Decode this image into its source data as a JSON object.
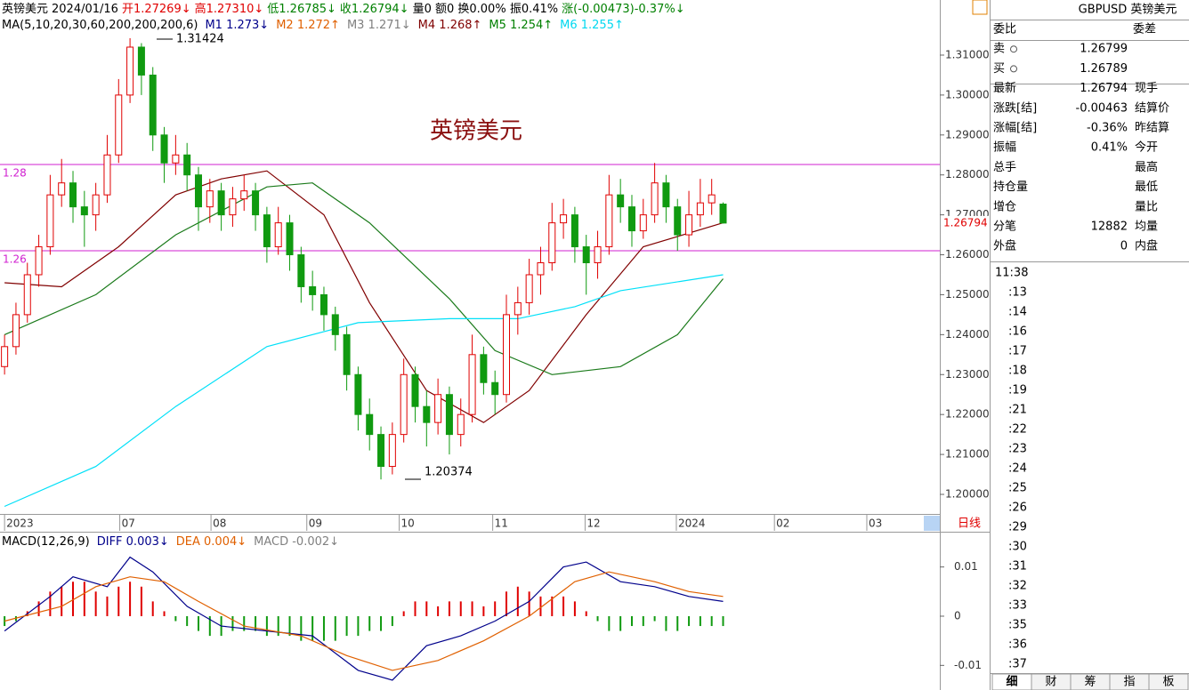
{
  "header": [
    {
      "text": "英镑美元",
      "color": "#000000"
    },
    {
      "text": "2024/01/16",
      "color": "#000000"
    },
    {
      "text": "开1.27269↓",
      "color": "#e00000"
    },
    {
      "text": "高1.27310↓",
      "color": "#e00000"
    },
    {
      "text": "低1.26785↓",
      "color": "#008000"
    },
    {
      "text": "收1.26794↓",
      "color": "#008000"
    },
    {
      "text": "量0 额0 换0.00% 振0.41%",
      "color": "#000000"
    },
    {
      "text": "涨(-0.00473)-0.37%↓",
      "color": "#008000"
    }
  ],
  "ma_legend": [
    {
      "text": "MA(5,10,20,30,60,200,200,200,6)",
      "color": "#000000"
    },
    {
      "text": "M1 1.273↓",
      "color": "#00008b"
    },
    {
      "text": "M2 1.272↑",
      "color": "#e06000"
    },
    {
      "text": "M3 1.271↓",
      "color": "#808080"
    },
    {
      "text": "M4 1.268↑",
      "color": "#800000"
    },
    {
      "text": "M5 1.254↑",
      "color": "#008000"
    },
    {
      "text": "M6 1.255↑",
      "color": "#00d8f0"
    }
  ],
  "chart_data": {
    "type": "candlestick",
    "title": "英镑美元",
    "xlim": [
      -0.4,
      82
    ],
    "ylim": [
      1.1951,
      1.3238
    ],
    "xticks": [
      {
        "value": 0,
        "label": "2023"
      },
      {
        "value": 10.1,
        "label": "07"
      },
      {
        "value": 18.1,
        "label": "08"
      },
      {
        "value": 26.5,
        "label": "09"
      },
      {
        "value": 34.6,
        "label": "10"
      },
      {
        "value": 42.8,
        "label": "11"
      },
      {
        "value": 50.9,
        "label": "12"
      },
      {
        "value": 58.9,
        "label": "2024"
      },
      {
        "value": 67.5,
        "label": "02"
      },
      {
        "value": 75.6,
        "label": "03"
      }
    ],
    "yticks": [
      {
        "value": 1.31,
        "label": "1.31000"
      },
      {
        "value": 1.3,
        "label": "1.30000"
      },
      {
        "value": 1.29,
        "label": "1.29000"
      },
      {
        "value": 1.28,
        "label": "1.28000"
      },
      {
        "value": 1.27,
        "label": "1.27000"
      },
      {
        "value": 1.26,
        "label": "1.26000"
      },
      {
        "value": 1.25,
        "label": "1.25000"
      },
      {
        "value": 1.24,
        "label": "1.24000"
      },
      {
        "value": 1.23,
        "label": "1.23000"
      },
      {
        "value": 1.22,
        "label": "1.22000"
      },
      {
        "value": 1.21,
        "label": "1.21000"
      },
      {
        "value": 1.2,
        "label": "1.20000"
      }
    ],
    "last_price": 1.26794,
    "period_button": "日线",
    "hlines": [
      {
        "value": 1.2826,
        "label": "1.28"
      },
      {
        "value": 1.261,
        "label": "1.26"
      }
    ],
    "annotations": [
      "1.31424",
      "1.20374"
    ],
    "up_color": "#e00000",
    "down_color": "#109a10",
    "hline_color": "#d020d0",
    "candles": [
      [
        1.232,
        1.24,
        1.23,
        1.237
      ],
      [
        1.237,
        1.248,
        1.235,
        1.245
      ],
      [
        1.245,
        1.258,
        1.243,
        1.255
      ],
      [
        1.255,
        1.265,
        1.252,
        1.262
      ],
      [
        1.262,
        1.28,
        1.26,
        1.275
      ],
      [
        1.275,
        1.284,
        1.272,
        1.278
      ],
      [
        1.278,
        1.281,
        1.268,
        1.272
      ],
      [
        1.272,
        1.276,
        1.262,
        1.27
      ],
      [
        1.27,
        1.278,
        1.266,
        1.275
      ],
      [
        1.275,
        1.29,
        1.273,
        1.285
      ],
      [
        1.285,
        1.304,
        1.283,
        1.3
      ],
      [
        1.3,
        1.31424,
        1.298,
        1.312
      ],
      [
        1.312,
        1.313,
        1.3,
        1.305
      ],
      [
        1.305,
        1.307,
        1.286,
        1.29
      ],
      [
        1.29,
        1.292,
        1.278,
        1.283
      ],
      [
        1.283,
        1.29,
        1.28,
        1.285
      ],
      [
        1.285,
        1.288,
        1.276,
        1.28
      ],
      [
        1.28,
        1.282,
        1.266,
        1.272
      ],
      [
        1.272,
        1.279,
        1.268,
        1.276
      ],
      [
        1.276,
        1.278,
        1.266,
        1.27
      ],
      [
        1.27,
        1.277,
        1.267,
        1.274
      ],
      [
        1.274,
        1.28,
        1.271,
        1.276
      ],
      [
        1.276,
        1.278,
        1.266,
        1.27
      ],
      [
        1.27,
        1.272,
        1.258,
        1.262
      ],
      [
        1.262,
        1.272,
        1.26,
        1.268
      ],
      [
        1.268,
        1.27,
        1.256,
        1.26
      ],
      [
        1.26,
        1.262,
        1.248,
        1.252
      ],
      [
        1.252,
        1.256,
        1.246,
        1.25
      ],
      [
        1.25,
        1.252,
        1.241,
        1.245
      ],
      [
        1.245,
        1.247,
        1.236,
        1.24
      ],
      [
        1.24,
        1.242,
        1.226,
        1.23
      ],
      [
        1.23,
        1.232,
        1.216,
        1.22
      ],
      [
        1.22,
        1.224,
        1.211,
        1.215
      ],
      [
        1.215,
        1.217,
        1.20374,
        1.207
      ],
      [
        1.207,
        1.218,
        1.205,
        1.215
      ],
      [
        1.215,
        1.234,
        1.213,
        1.23
      ],
      [
        1.23,
        1.232,
        1.218,
        1.222
      ],
      [
        1.222,
        1.226,
        1.212,
        1.218
      ],
      [
        1.218,
        1.229,
        1.215,
        1.225
      ],
      [
        1.225,
        1.227,
        1.21,
        1.215
      ],
      [
        1.215,
        1.224,
        1.212,
        1.22
      ],
      [
        1.22,
        1.24,
        1.218,
        1.235
      ],
      [
        1.235,
        1.237,
        1.225,
        1.228
      ],
      [
        1.228,
        1.231,
        1.22,
        1.225
      ],
      [
        1.225,
        1.25,
        1.223,
        1.245
      ],
      [
        1.245,
        1.252,
        1.24,
        1.248
      ],
      [
        1.248,
        1.259,
        1.245,
        1.255
      ],
      [
        1.255,
        1.262,
        1.25,
        1.258
      ],
      [
        1.258,
        1.273,
        1.256,
        1.268
      ],
      [
        1.268,
        1.274,
        1.264,
        1.27
      ],
      [
        1.27,
        1.272,
        1.258,
        1.262
      ],
      [
        1.262,
        1.265,
        1.25,
        1.258
      ],
      [
        1.258,
        1.266,
        1.254,
        1.262
      ],
      [
        1.262,
        1.28,
        1.26,
        1.275
      ],
      [
        1.275,
        1.279,
        1.268,
        1.272
      ],
      [
        1.272,
        1.275,
        1.262,
        1.266
      ],
      [
        1.266,
        1.274,
        1.264,
        1.27
      ],
      [
        1.27,
        1.283,
        1.268,
        1.278
      ],
      [
        1.278,
        1.28,
        1.268,
        1.272
      ],
      [
        1.272,
        1.274,
        1.261,
        1.265
      ],
      [
        1.265,
        1.276,
        1.262,
        1.27
      ],
      [
        1.27,
        1.279,
        1.267,
        1.273
      ],
      [
        1.273,
        1.279,
        1.27,
        1.275
      ],
      [
        1.27269,
        1.2731,
        1.26785,
        1.26794
      ]
    ],
    "ma_lines": [
      {
        "name": "M4",
        "color": "#800000",
        "x": [
          0,
          5,
          10,
          15,
          19,
          23,
          28,
          32,
          37,
          42,
          46,
          51,
          56,
          63
        ],
        "values": [
          1.253,
          1.252,
          1.262,
          1.275,
          1.279,
          1.281,
          1.27,
          1.248,
          1.226,
          1.218,
          1.226,
          1.245,
          1.262,
          1.268
        ]
      },
      {
        "name": "M5",
        "color": "#1a7a1a",
        "x": [
          0,
          8,
          15,
          23,
          27,
          32,
          39,
          43,
          48,
          54,
          59,
          63
        ],
        "values": [
          1.24,
          1.25,
          1.265,
          1.277,
          1.278,
          1.268,
          1.249,
          1.236,
          1.23,
          1.232,
          1.24,
          1.254
        ]
      },
      {
        "name": "M6",
        "color": "#00e0f8",
        "x": [
          0,
          8,
          15,
          23,
          31,
          39,
          45,
          50,
          54,
          63
        ],
        "values": [
          1.197,
          1.207,
          1.222,
          1.237,
          1.243,
          1.244,
          1.244,
          1.247,
          1.251,
          1.255
        ]
      }
    ],
    "macd": {
      "legend": [
        {
          "text": "MACD(12,26,9)",
          "color": "#000000"
        },
        {
          "text": "DIFF 0.003↓",
          "color": "#00008b"
        },
        {
          "text": "DEA 0.004↓",
          "color": "#e06000"
        },
        {
          "text": "MACD -0.002↓",
          "color": "#808080"
        }
      ],
      "ylim": [
        -0.015,
        0.0168
      ],
      "yticks": [
        0.01,
        0,
        -0.01
      ],
      "histogram": [
        -0.002,
        -0.001,
        0.001,
        0.003,
        0.005,
        0.006,
        0.007,
        0.007,
        0.005,
        0.004,
        0.006,
        0.007,
        0.006,
        0.003,
        0.001,
        -0.001,
        -0.002,
        -0.003,
        -0.004,
        -0.004,
        -0.003,
        -0.003,
        -0.003,
        -0.004,
        -0.004,
        -0.004,
        -0.005,
        -0.005,
        -0.005,
        -0.005,
        -0.004,
        -0.004,
        -0.003,
        -0.003,
        -0.002,
        0.001,
        0.003,
        0.003,
        0.002,
        0.003,
        0.003,
        0.003,
        0.002,
        0.003,
        0.005,
        0.006,
        0.005,
        0.004,
        0.004,
        0.004,
        0.003,
        0.001,
        -0.001,
        -0.003,
        -0.003,
        -0.002,
        -0.002,
        -0.001,
        -0.003,
        -0.003,
        -0.002,
        -0.002,
        -0.002,
        -0.002
      ],
      "lines": [
        {
          "name": "DIFF",
          "color": "#00008b",
          "x": [
            0,
            4,
            6,
            9,
            11,
            13,
            16,
            19,
            23,
            27,
            31,
            34,
            37,
            40,
            43,
            46,
            49,
            51,
            54,
            57,
            60,
            63
          ],
          "values": [
            -0.003,
            0.004,
            0.008,
            0.006,
            0.012,
            0.009,
            0.002,
            -0.002,
            -0.003,
            -0.004,
            -0.011,
            -0.013,
            -0.006,
            -0.004,
            -0.001,
            0.003,
            0.01,
            0.011,
            0.007,
            0.006,
            0.004,
            0.003
          ]
        },
        {
          "name": "DEA",
          "color": "#e06000",
          "x": [
            0,
            5,
            8,
            11,
            14,
            17,
            21,
            26,
            30,
            34,
            38,
            42,
            46,
            50,
            53,
            57,
            60,
            63
          ],
          "values": [
            -0.001,
            0.002,
            0.006,
            0.008,
            0.007,
            0.003,
            -0.002,
            -0.004,
            -0.008,
            -0.011,
            -0.009,
            -0.005,
            0.0,
            0.007,
            0.009,
            0.007,
            0.005,
            0.004
          ]
        }
      ]
    }
  },
  "side": {
    "title": "GBPUSD 英镑美元",
    "rows": [
      {
        "label": "委比",
        "label2": "委差"
      },
      {
        "label": "卖",
        "value": "1.26799",
        "color": "#008000"
      },
      {
        "label": "买",
        "value": "1.26789",
        "color": "#008000"
      },
      {
        "label": "最新",
        "value": "1.26794",
        "color": "#008000",
        "label2": "现手"
      },
      {
        "label": "涨跌[结]",
        "value": "-0.00463",
        "color": "#008000",
        "label2": "结算价"
      },
      {
        "label": "涨幅[结]",
        "value": "-0.36%",
        "color": "#008000",
        "label2": "昨结算"
      },
      {
        "label": "振幅",
        "value": "0.41%",
        "color": "#000000",
        "label2": "今开"
      },
      {
        "label": "总手",
        "label2": "最高"
      },
      {
        "label": "持仓量",
        "label2": "最低"
      },
      {
        "label": "增仓",
        "label2": "量比"
      },
      {
        "label": "分笔",
        "value": "12882",
        "color": "#000000",
        "label2": "均量"
      },
      {
        "label": "外盘",
        "value": "0",
        "color": "#e00000",
        "label2": "内盘"
      }
    ],
    "ticks": [
      "11:38",
      ":13",
      ":14",
      ":16",
      ":17",
      ":18",
      ":19",
      ":21",
      ":22",
      ":23",
      ":24",
      ":25",
      ":26",
      ":29",
      ":30",
      ":31",
      ":32",
      ":33",
      ":35",
      ":36",
      ":37"
    ],
    "tabs": [
      "细",
      "财",
      "筹",
      "指",
      "板"
    ]
  }
}
